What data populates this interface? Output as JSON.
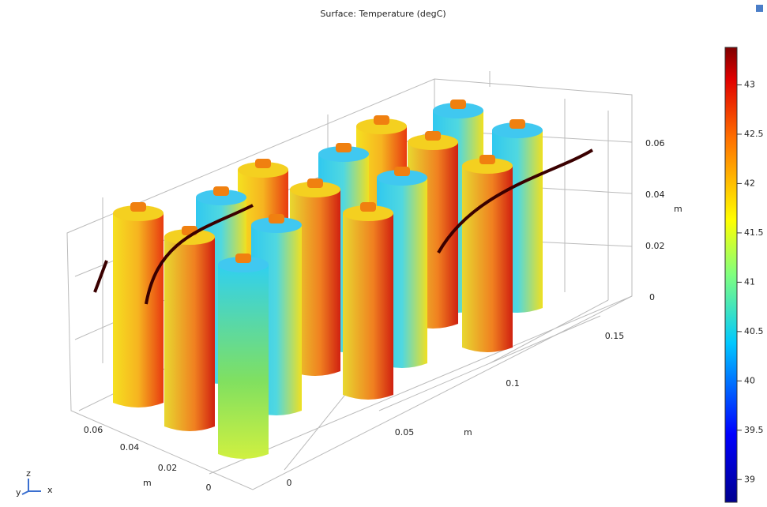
{
  "plot": {
    "title": "Surface: Temperature (degC)",
    "colorbar": {
      "lim": [
        38.77,
        43.38
      ],
      "ticks": [
        39,
        39.5,
        40,
        40.5,
        41,
        41.5,
        42,
        42.5,
        43
      ]
    },
    "z_axis": {
      "ticks": [
        "0",
        "0.02",
        "0.04",
        "0.06"
      ],
      "unit": "m"
    },
    "x_axis": {
      "ticks": [
        "0",
        "0.05",
        "0.1",
        "0.15"
      ],
      "unit": "m"
    },
    "y_axis": {
      "ticks": [
        "0",
        "0.02",
        "0.04",
        "0.06"
      ],
      "unit": "m"
    },
    "triad": {
      "x": "x",
      "y": "y",
      "z": "z"
    }
  }
}
